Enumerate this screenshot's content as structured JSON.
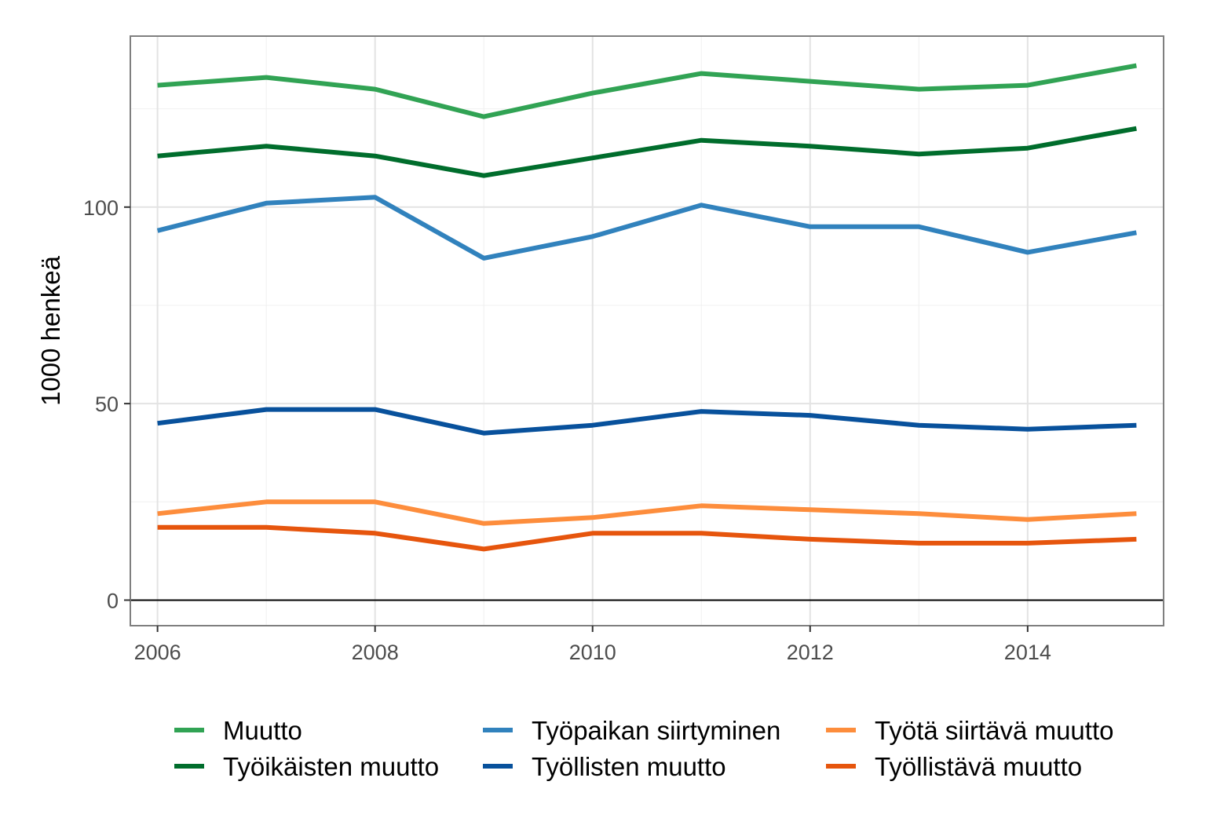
{
  "chart_data": {
    "type": "line",
    "title": "",
    "xlabel": "",
    "ylabel": "1000 henkeä",
    "xlim": [
      2005.75,
      2015.25
    ],
    "ylim": [
      -6.5,
      143.5
    ],
    "x_ticks": [
      2006,
      2008,
      2010,
      2012,
      2014
    ],
    "y_ticks": [
      0,
      50,
      100
    ],
    "grid": true,
    "legend_position": "bottom",
    "x": [
      2006,
      2007,
      2008,
      2009,
      2010,
      2011,
      2012,
      2013,
      2014,
      2015
    ],
    "series": [
      {
        "name": "Muutto",
        "color": "#31a354",
        "values": [
          131,
          133,
          130,
          123,
          129,
          134,
          132,
          130,
          131,
          136
        ]
      },
      {
        "name": "Työikäisten muutto",
        "color": "#006d2c",
        "values": [
          113,
          115.5,
          113,
          108,
          112.5,
          117,
          115.5,
          113.5,
          115,
          120
        ]
      },
      {
        "name": "Työpaikan siirtyminen",
        "color": "#3182bd",
        "values": [
          94,
          101,
          102.5,
          87,
          92.5,
          100.5,
          95,
          95,
          88.5,
          93.5
        ]
      },
      {
        "name": "Työllisten muutto",
        "color": "#08519c",
        "values": [
          45,
          48.5,
          48.5,
          42.5,
          44.5,
          48,
          47,
          44.5,
          43.5,
          44.5
        ]
      },
      {
        "name": "Työtä siirtävä muutto",
        "color": "#fd8d3c",
        "values": [
          22,
          25,
          25,
          19.5,
          21,
          24,
          23,
          22,
          20.5,
          22
        ]
      },
      {
        "name": "Työllistävä muutto",
        "color": "#e6550d",
        "values": [
          18.5,
          18.5,
          17,
          13,
          17,
          17,
          15.5,
          14.5,
          14.5,
          15.5
        ]
      }
    ]
  }
}
